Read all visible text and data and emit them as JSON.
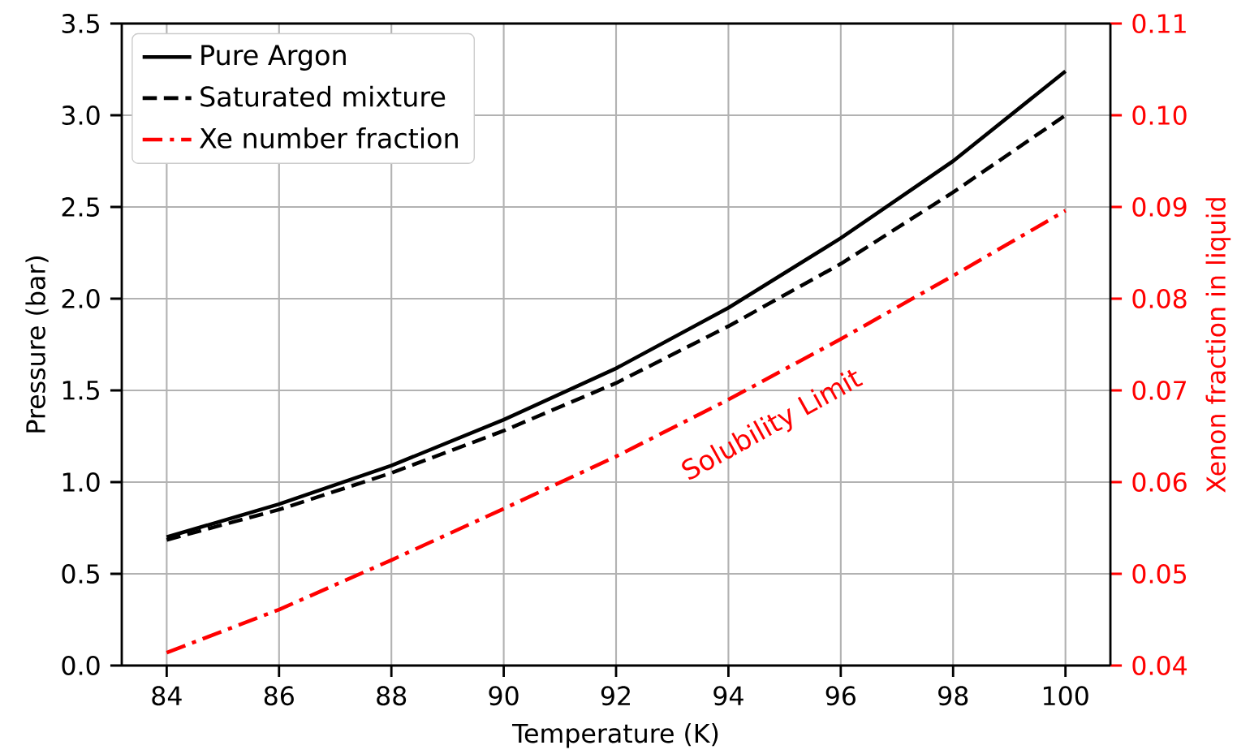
{
  "chart_data": {
    "type": "line",
    "xlabel": "Temperature (K)",
    "ylabel": "Pressure (bar)",
    "y2label": "Xenon fraction in liquid",
    "x": [
      84,
      86,
      88,
      90,
      92,
      94,
      96,
      98,
      100
    ],
    "series": [
      {
        "name": "Pure Argon",
        "color": "#000000",
        "line_style": "solid",
        "values": [
          0.7,
          0.88,
          1.09,
          1.34,
          1.62,
          1.95,
          2.33,
          2.75,
          3.24
        ]
      },
      {
        "name": "Saturated mixture",
        "color": "#000000",
        "line_style": "dashed",
        "values": [
          0.685,
          0.85,
          1.05,
          1.28,
          1.54,
          1.85,
          2.19,
          2.58,
          3.0
        ]
      },
      {
        "name": "Xe number fraction",
        "color": "#ff0000",
        "line_style": "dashdot",
        "axis": "y2",
        "values": [
          0.0414,
          0.0461,
          0.0515,
          0.0571,
          0.0628,
          0.069,
          0.0756,
          0.0825,
          0.0896
        ]
      }
    ],
    "xlim": [
      83.2,
      100.8
    ],
    "xticks": [
      84,
      86,
      88,
      90,
      92,
      94,
      96,
      98,
      100
    ],
    "ylim": [
      0,
      3.5
    ],
    "yticks": [
      {
        "value": 0,
        "label": "0.0"
      },
      0.5,
      {
        "value": 1,
        "label": "1.0"
      },
      1.5,
      {
        "value": 2,
        "label": "2.0"
      },
      2.5,
      {
        "value": 3,
        "label": "3.0"
      },
      3.5
    ],
    "y2lim": [
      0.04,
      0.11
    ],
    "y2ticks": [
      0.04,
      0.05,
      0.06,
      0.07,
      0.08,
      0.09,
      {
        "value": 0.1,
        "label": "0.10"
      },
      0.11
    ],
    "annotations": [
      "Solubility Limit"
    ],
    "grid": true,
    "legend": "top left"
  }
}
